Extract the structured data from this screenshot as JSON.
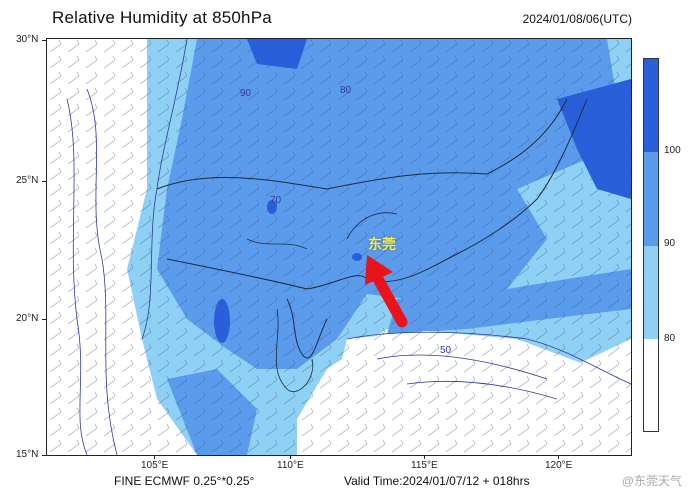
{
  "header": {
    "title": "Relative Humidity at 850hPa",
    "init_time": "2024/01/08/06(UTC)"
  },
  "axes": {
    "lat_labels": [
      "30°N",
      "25°N",
      "20°N",
      "15°N"
    ],
    "lon_labels": [
      "105°E",
      "110°E",
      "115°E",
      "120°E"
    ]
  },
  "legend": {
    "levels": [
      "100",
      "90",
      "80"
    ],
    "colors": [
      "#2a5fdc",
      "#5b9bec",
      "#8fd0f5",
      "#ffffff"
    ]
  },
  "contour_labels": [
    "70",
    "80",
    "90",
    "50"
  ],
  "footer": {
    "model": "FINE ECMWF 0.25°*0.25°",
    "valid_time": "Valid Time:2024/01/07/12 + 018hrs"
  },
  "annotation": {
    "city": "东莞",
    "arrow_color": "#e8141c"
  },
  "watermark": {
    "text": "@东莞天气"
  }
}
